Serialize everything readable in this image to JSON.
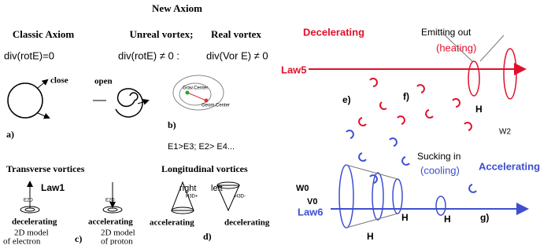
{
  "left_panel": {
    "title": "New Axiom",
    "classic": "Classic Axiom",
    "unreal": "Unreal vortex;",
    "real": "Real vortex",
    "eq_classic": "div(rotE)=0",
    "eq_unreal": "div(rotE) ≠ 0 :",
    "eq_real": "div(Vor E) ≠ 0",
    "close": "close",
    "open": "open",
    "label_a": "a)",
    "label_b": "b)",
    "inequality": "E1>E3; E2> E4...",
    "grav_center": "Grav.Center",
    "geom_center": "Geom.Center",
    "transverse": "Transverse vortices",
    "longitudinal": "Longitudinal vortices",
    "law1": "Law1",
    "right": "right",
    "left": "left",
    "e2d_1": "E2D",
    "e2d_2": "E2D",
    "h3d_plus": "H3D+",
    "h3d_minus": "H3D-",
    "states": [
      "decelerating",
      "accelerating",
      "accelerating",
      "decelerating"
    ],
    "electron": [
      "2D model",
      "of electron"
    ],
    "proton": [
      "2D model",
      "of proton"
    ],
    "label_c": "c)",
    "label_d": "d)"
  },
  "right_panel": {
    "decelerating": "Decelerating",
    "emitting": "Emitting out",
    "heating": "(heating)",
    "law5": "Law5",
    "label_e": "e)",
    "label_f": "f)",
    "h_red": "H",
    "w2": "W2",
    "sucking": "Sucking in",
    "cooling": "(cooling)",
    "accelerating": "Accelerating",
    "w0": "W0",
    "v0": "V0",
    "law6": "Law6",
    "label_g": "g)",
    "h_blue": [
      "H",
      "H",
      "H"
    ]
  }
}
